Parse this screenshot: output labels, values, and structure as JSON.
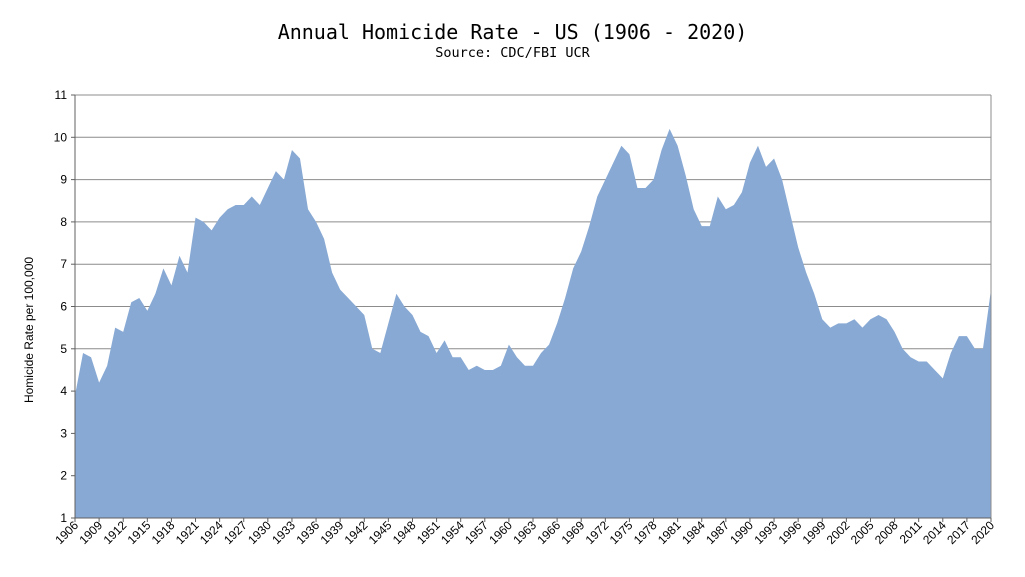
{
  "chart_data": {
    "type": "area",
    "title": "Annual Homicide Rate - US (1906 - 2020)",
    "subtitle": "Source: CDC/FBI UCR",
    "ylabel": "Homicide Rate per 100,000",
    "xlabel": "",
    "ylim": [
      1,
      11
    ],
    "xlim": [
      1906,
      2020
    ],
    "grid": true,
    "fill_color": "#87a9d4",
    "y_ticks": [
      "1",
      "2",
      "3",
      "4",
      "5",
      "6",
      "7",
      "8",
      "9",
      "10",
      "11"
    ],
    "x_ticks": [
      "1906",
      "1909",
      "1912",
      "1915",
      "1918",
      "1921",
      "1924",
      "1927",
      "1930",
      "1933",
      "1936",
      "1939",
      "1942",
      "1945",
      "1948",
      "1951",
      "1954",
      "1957",
      "1960",
      "1963",
      "1966",
      "1969",
      "1972",
      "1975",
      "1978",
      "1981",
      "1984",
      "1987",
      "1990",
      "1993",
      "1996",
      "1999",
      "2002",
      "2005",
      "2008",
      "2011",
      "2014",
      "2017",
      "2020"
    ],
    "series": [
      {
        "x": [
          1906,
          1907,
          1908,
          1909,
          1910,
          1911,
          1912,
          1913,
          1914,
          1915,
          1916,
          1917,
          1918,
          1919,
          1920,
          1921,
          1922,
          1923,
          1924,
          1925,
          1926,
          1927,
          1928,
          1929,
          1930,
          1931,
          1932,
          1933,
          1934,
          1935,
          1936,
          1937,
          1938,
          1939,
          1940,
          1941,
          1942,
          1943,
          1944,
          1945,
          1946,
          1947,
          1948,
          1949,
          1950,
          1951,
          1952,
          1953,
          1954,
          1955,
          1956,
          1957,
          1958,
          1959,
          1960,
          1961,
          1962,
          1963,
          1964,
          1965,
          1966,
          1967,
          1968,
          1969,
          1970,
          1971,
          1972,
          1973,
          1974,
          1975,
          1976,
          1977,
          1978,
          1979,
          1980,
          1981,
          1982,
          1983,
          1984,
          1985,
          1986,
          1987,
          1988,
          1989,
          1990,
          1991,
          1992,
          1993,
          1994,
          1995,
          1996,
          1997,
          1998,
          1999,
          2000,
          2001,
          2002,
          2003,
          2004,
          2005,
          2006,
          2007,
          2008,
          2009,
          2010,
          2011,
          2012,
          2013,
          2014,
          2015,
          2016,
          2017,
          2018,
          2019,
          2020
        ],
        "values": [
          3.9,
          4.9,
          4.8,
          4.2,
          4.6,
          5.5,
          5.4,
          6.1,
          6.2,
          5.9,
          6.3,
          6.9,
          6.5,
          7.2,
          6.8,
          8.1,
          8.0,
          7.8,
          8.1,
          8.3,
          8.4,
          8.4,
          8.6,
          8.4,
          8.8,
          9.2,
          9.0,
          9.7,
          9.5,
          8.3,
          8.0,
          7.6,
          6.8,
          6.4,
          6.2,
          6.0,
          5.8,
          5.0,
          4.9,
          5.6,
          6.3,
          6.0,
          5.8,
          5.4,
          5.3,
          4.9,
          5.2,
          4.8,
          4.8,
          4.5,
          4.6,
          4.5,
          4.5,
          4.6,
          5.1,
          4.8,
          4.6,
          4.6,
          4.9,
          5.1,
          5.6,
          6.2,
          6.9,
          7.3,
          7.9,
          8.6,
          9.0,
          9.4,
          9.8,
          9.6,
          8.8,
          8.8,
          9.0,
          9.7,
          10.2,
          9.8,
          9.1,
          8.3,
          7.9,
          7.9,
          8.6,
          8.3,
          8.4,
          8.7,
          9.4,
          9.8,
          9.3,
          9.5,
          9.0,
          8.2,
          7.4,
          6.8,
          6.3,
          5.7,
          5.5,
          5.6,
          5.6,
          5.7,
          5.5,
          5.7,
          5.8,
          5.7,
          5.4,
          5.0,
          4.8,
          4.7,
          4.7,
          4.5,
          4.3,
          4.9,
          5.3,
          5.3,
          5.0,
          5.0,
          6.4
        ]
      }
    ]
  }
}
